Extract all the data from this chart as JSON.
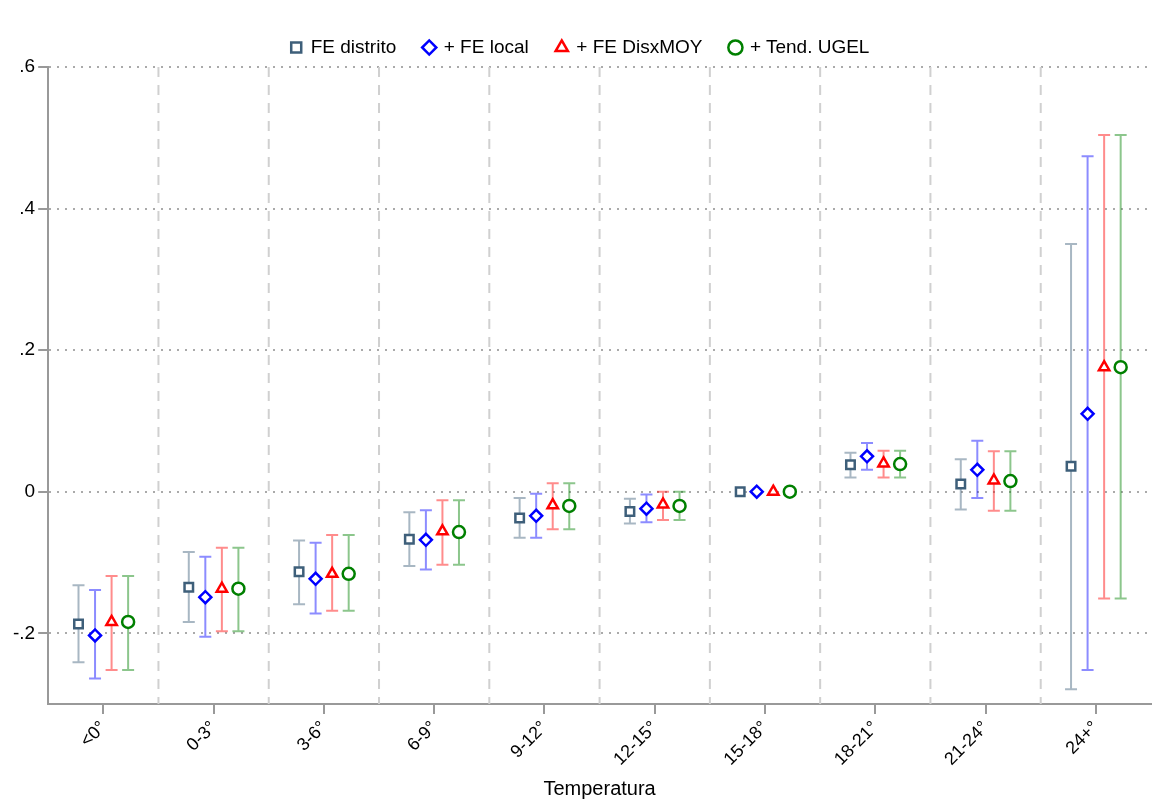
{
  "chart_data": {
    "type": "scatter",
    "xlabel": "Temperatura",
    "categories": [
      "<0°",
      "0-3°",
      "3-6°",
      "6-9°",
      "9-12°",
      "12-15°",
      "15-18°",
      "18-21°",
      "21-24°",
      "24+°"
    ],
    "series": [
      {
        "name": "FE distrito",
        "color": "#3e5f7a",
        "marker": "square",
        "values": [
          -0.187,
          -0.135,
          -0.113,
          -0.067,
          -0.037,
          -0.028,
          0,
          0.038,
          0.011,
          0.036
        ],
        "errors": [
          [
            -0.241,
            -0.132
          ],
          [
            -0.184,
            -0.085
          ],
          [
            -0.159,
            -0.069
          ],
          [
            -0.105,
            -0.029
          ],
          [
            -0.065,
            -0.009
          ],
          [
            -0.045,
            -0.01
          ],
          null,
          [
            0.02,
            0.055
          ],
          [
            -0.025,
            0.046
          ],
          [
            -0.279,
            0.35
          ]
        ]
      },
      {
        "name": "+ FE local",
        "color": "#0000ff",
        "marker": "diamond",
        "values": [
          -0.203,
          -0.149,
          -0.123,
          -0.068,
          -0.034,
          -0.024,
          0,
          0.05,
          0.031,
          0.11
        ],
        "errors": [
          [
            -0.264,
            -0.139
          ],
          [
            -0.205,
            -0.092
          ],
          [
            -0.172,
            -0.072
          ],
          [
            -0.11,
            -0.026
          ],
          [
            -0.065,
            -0.003
          ],
          [
            -0.043,
            -0.004
          ],
          null,
          [
            0.031,
            0.069
          ],
          [
            -0.009,
            0.072
          ],
          [
            -0.252,
            0.474
          ]
        ]
      },
      {
        "name": "+ FE DisxMOY",
        "color": "#ff0000",
        "marker": "triangle",
        "values": [
          -0.184,
          -0.137,
          -0.116,
          -0.056,
          -0.019,
          -0.018,
          0,
          0.04,
          0.016,
          0.176
        ],
        "errors": [
          [
            -0.252,
            -0.119
          ],
          [
            -0.197,
            -0.079
          ],
          [
            -0.168,
            -0.061
          ],
          [
            -0.103,
            -0.012
          ],
          [
            -0.053,
            0.012
          ],
          [
            -0.04,
            0.0
          ],
          null,
          [
            0.02,
            0.058
          ],
          [
            -0.027,
            0.057
          ],
          [
            -0.151,
            0.504
          ]
        ]
      },
      {
        "name": "+ Tend. UGEL",
        "color": "#008000",
        "marker": "circle",
        "values": [
          -0.184,
          -0.137,
          -0.116,
          -0.057,
          -0.02,
          -0.02,
          0,
          0.039,
          0.015,
          0.176
        ],
        "errors": [
          [
            -0.252,
            -0.119
          ],
          [
            -0.197,
            -0.079
          ],
          [
            -0.168,
            -0.061
          ],
          [
            -0.103,
            -0.012
          ],
          [
            -0.053,
            0.012
          ],
          [
            -0.04,
            0.0
          ],
          null,
          [
            0.02,
            0.058
          ],
          [
            -0.027,
            0.057
          ],
          [
            -0.151,
            0.504
          ]
        ]
      }
    ],
    "ylim": [
      -0.3,
      0.6
    ],
    "yticks": [
      {
        "value": -0.2,
        "label": "-.2"
      },
      {
        "value": 0,
        "label": "0"
      },
      {
        "value": 0.2,
        "label": ".2"
      },
      {
        "value": 0.4,
        "label": ".4"
      },
      {
        "value": 0.6,
        "label": ".6"
      }
    ],
    "grid": true,
    "legend": "top"
  }
}
